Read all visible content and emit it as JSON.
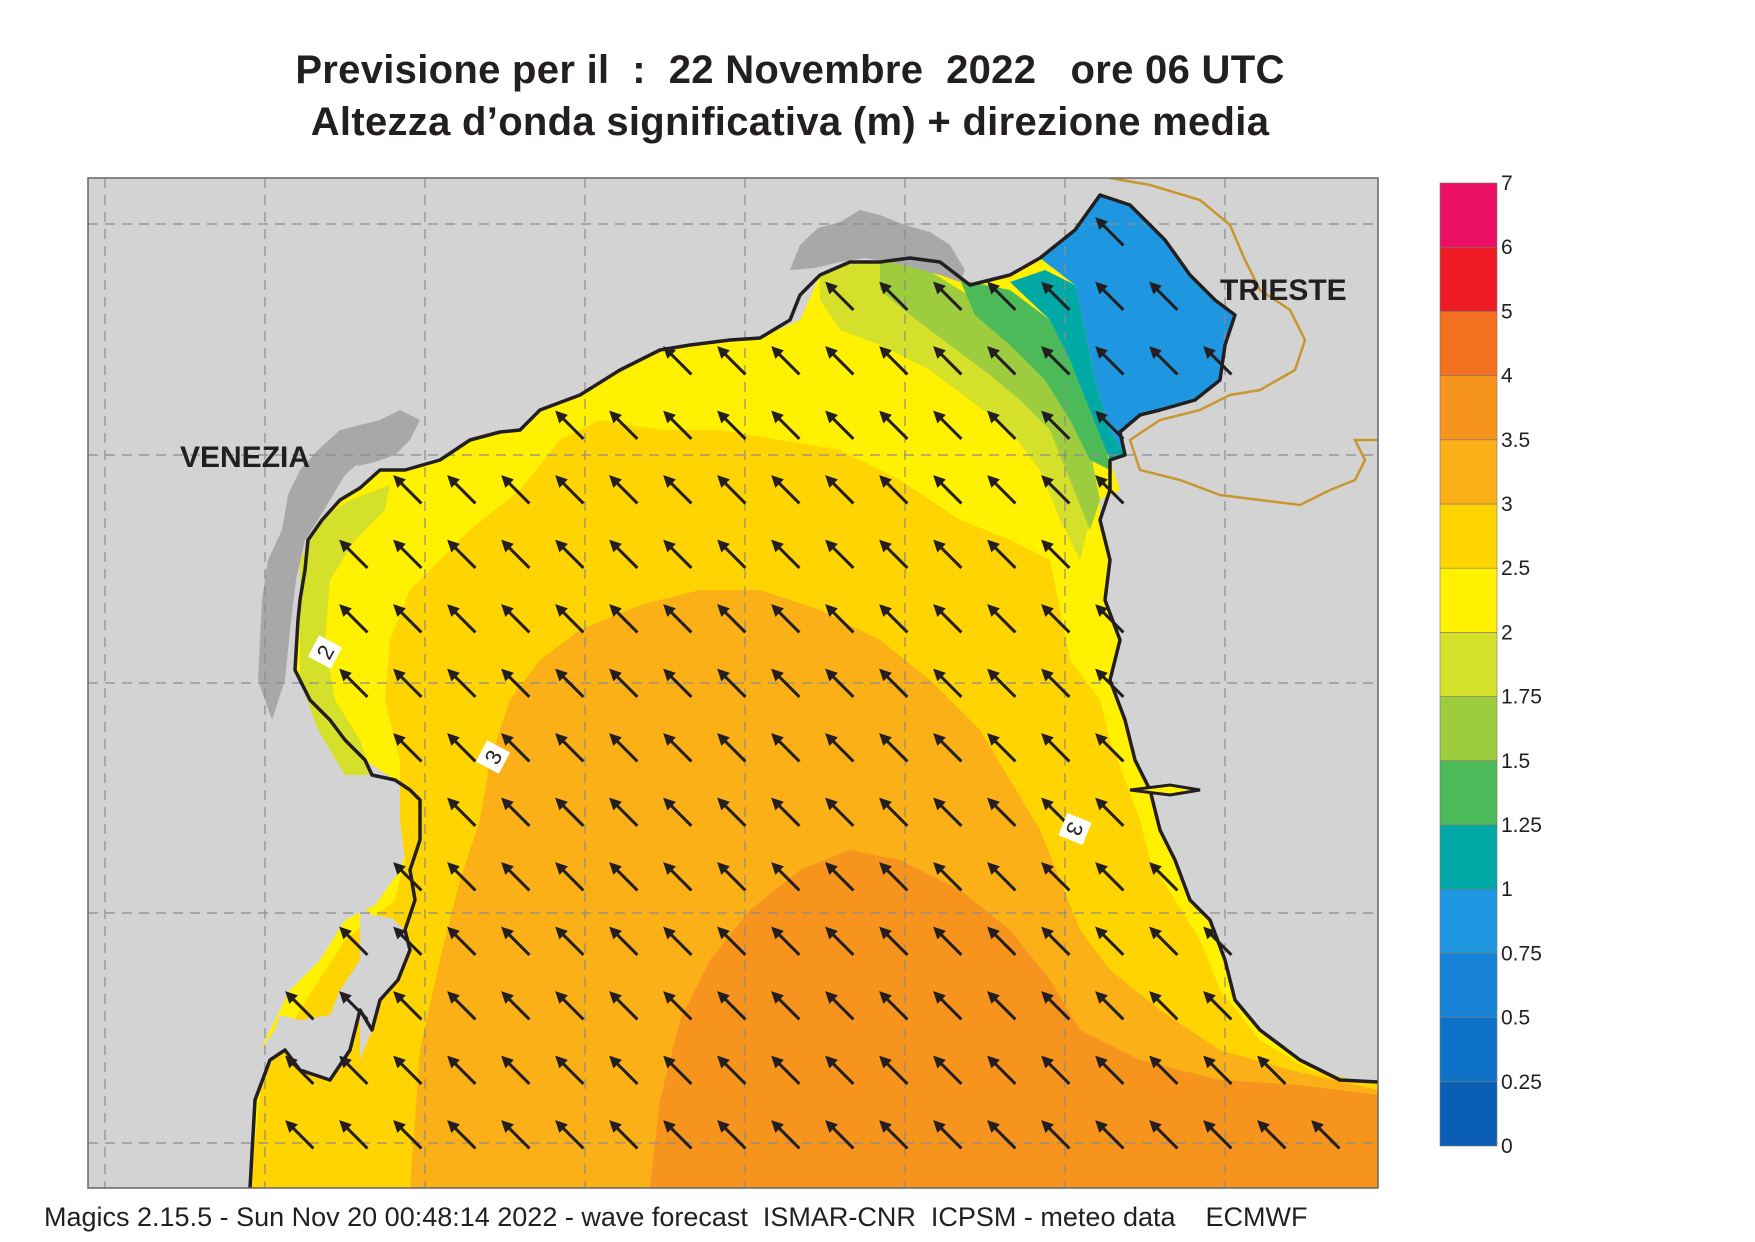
{
  "title": {
    "line1": "Previsione per il  :  22 Novembre  2022   ore 06 UTC",
    "line2": "Altezza d’onda significativa (m) + direzione media"
  },
  "footer": "Magics 2.15.5 - Sun Nov 20 00:48:14 2022 - wave forecast  ISMAR-CNR  ICPSM - meteo data    ECMWF",
  "cities": {
    "venezia": "VENEZIA",
    "trieste": "TRIESTE"
  },
  "contour_labels": {
    "west": "2",
    "center": "3",
    "east": "3"
  },
  "colorbar": {
    "levels": [
      "0",
      "0.25",
      "0.5",
      "0.75",
      "1",
      "1.25",
      "1.5",
      "1.75",
      "2",
      "2.5",
      "3",
      "3.5",
      "4",
      "5",
      "6",
      "7"
    ],
    "colors": [
      "#0a5fb4",
      "#0d72c8",
      "#1683d6",
      "#1f97e0",
      "#00a9a5",
      "#4dba5a",
      "#9dcc3e",
      "#d4e02a",
      "#fff100",
      "#ffd400",
      "#fbb017",
      "#f7941d",
      "#f37021",
      "#ed1c24",
      "#ec1065"
    ]
  },
  "map_colors": {
    "land": "#d3d3d3",
    "urban": "#a8a8a8",
    "coast": "#231f20",
    "border": "#c8962e",
    "grid": "#8c8c8c",
    "arrow": "#231f20"
  },
  "wave_direction": "toward NW"
}
